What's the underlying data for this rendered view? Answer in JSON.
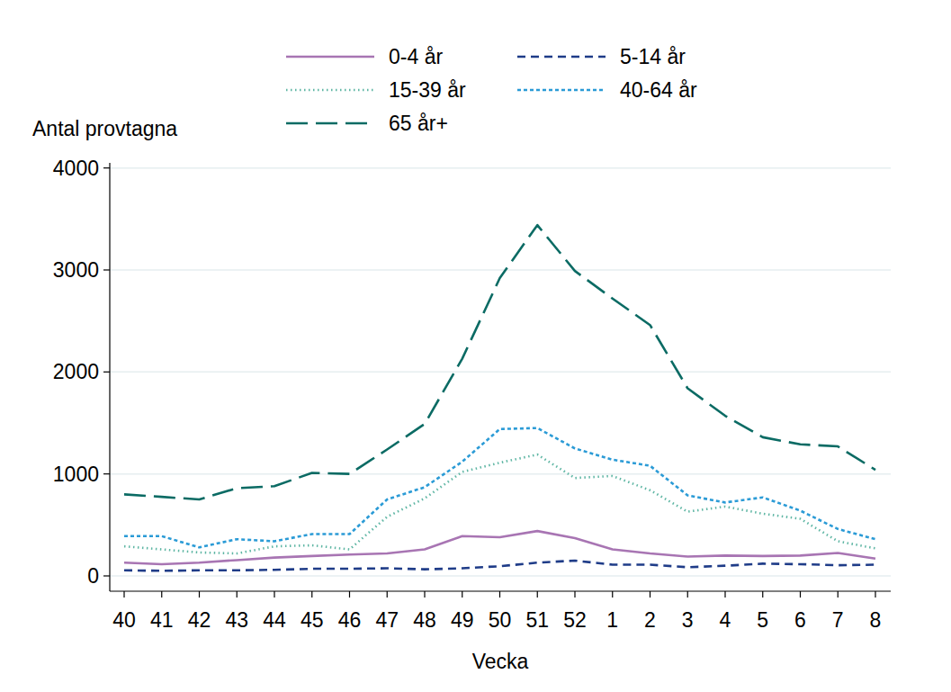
{
  "chart_data": {
    "type": "line",
    "x_label": "Vecka",
    "y_label": "Antal provtagna",
    "categories": [
      "40",
      "41",
      "42",
      "43",
      "44",
      "45",
      "46",
      "47",
      "48",
      "49",
      "50",
      "51",
      "52",
      "1",
      "2",
      "3",
      "4",
      "5",
      "6",
      "7",
      "8"
    ],
    "series": [
      {
        "name": "0-4 år",
        "color": "#a875b3",
        "line_style": "solid",
        "values": [
          130,
          115,
          130,
          155,
          180,
          195,
          210,
          220,
          260,
          390,
          380,
          440,
          370,
          260,
          220,
          190,
          200,
          195,
          200,
          225,
          170
        ]
      },
      {
        "name": "5-14 år",
        "color": "#1f3c88",
        "line_style": "dash",
        "values": [
          55,
          50,
          55,
          55,
          60,
          70,
          70,
          75,
          65,
          75,
          95,
          130,
          150,
          110,
          110,
          85,
          100,
          120,
          115,
          105,
          110
        ]
      },
      {
        "name": "15-39 år",
        "color": "#5fb6a4",
        "line_style": "dot",
        "values": [
          290,
          260,
          230,
          220,
          290,
          300,
          260,
          580,
          760,
          1020,
          1110,
          1190,
          960,
          980,
          840,
          630,
          680,
          610,
          560,
          340,
          270
        ]
      },
      {
        "name": "40-64 år",
        "color": "#2b9bd6",
        "line_style": "shortdash",
        "values": [
          390,
          390,
          280,
          360,
          340,
          410,
          410,
          750,
          870,
          1120,
          1440,
          1450,
          1250,
          1140,
          1080,
          790,
          720,
          770,
          640,
          460,
          360
        ]
      },
      {
        "name": "65 år+",
        "color": "#0b6b64",
        "line_style": "longdash",
        "values": [
          800,
          775,
          750,
          860,
          880,
          1010,
          1000,
          1240,
          1490,
          2130,
          2920,
          3440,
          2990,
          2720,
          2460,
          1840,
          1570,
          1360,
          1290,
          1270,
          1040
        ]
      }
    ],
    "ylim": [
      -150,
      4050
    ],
    "yticks": [
      0,
      1000,
      2000,
      3000,
      4000
    ],
    "grid": true,
    "legend": "top"
  }
}
